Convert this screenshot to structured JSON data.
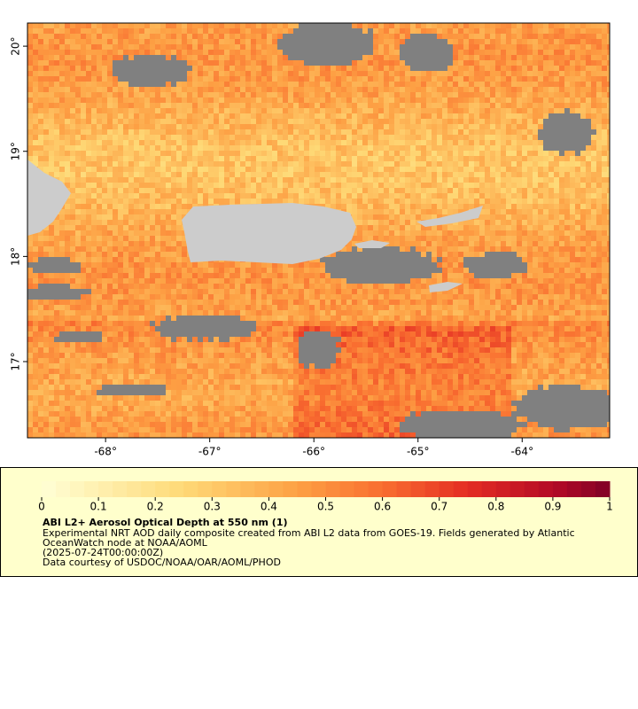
{
  "map": {
    "xlim": [
      -68.75,
      -63.16
    ],
    "ylim": [
      16.275,
      20.22
    ],
    "xticks": [
      {
        "value": -68,
        "label": "-68°"
      },
      {
        "value": -67,
        "label": "-67°"
      },
      {
        "value": -66,
        "label": "-66°"
      },
      {
        "value": -65,
        "label": "-65°"
      },
      {
        "value": -64,
        "label": "-64°"
      }
    ],
    "yticks": [
      {
        "value": 17,
        "label": "17°"
      },
      {
        "value": 18,
        "label": "18°"
      },
      {
        "value": 19,
        "label": "19°"
      },
      {
        "value": 20,
        "label": "20°"
      }
    ]
  },
  "colorbar": {
    "lim": [
      0,
      1
    ],
    "ticks": [
      0,
      0.1,
      0.2,
      0.3,
      0.4,
      0.5,
      0.6,
      0.7,
      0.8,
      0.9,
      1
    ]
  },
  "legend": {
    "title": "ABI L2+ Aerosol Optical Depth at 550 nm (1)",
    "lines": [
      "Experimental NRT AOD daily composite created from ABI L2 data from GOES-19. Fields generated by Atlantic",
      "OceanWatch node at NOAA/AOML",
      "(2025-07-24T00:00:00Z)",
      "Data courtesy of USDOC/NOAA/OAR/AOML/PHOD"
    ]
  }
}
